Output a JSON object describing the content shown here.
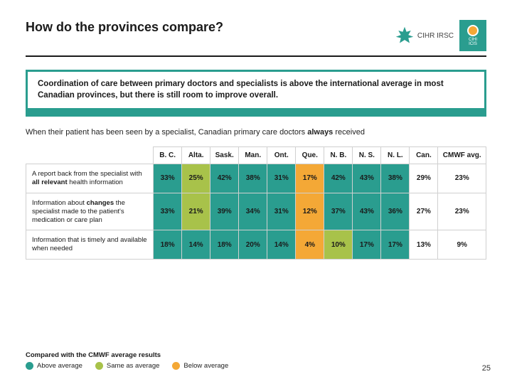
{
  "title": "How do the provinces compare?",
  "logos": {
    "cihr_line1": "CIHR",
    "cihr_line2": "IRSC",
    "cihi_line1": "CIHI",
    "cihi_line2": "ICIS"
  },
  "callout": "Coordination of care between primary doctors and specialists is above the international average in most Canadian provinces, but there is still room to improve overall.",
  "intro_pre": "When their patient has been seen by a specialist, Canadian primary care doctors ",
  "intro_bold": "always",
  "intro_post": " received",
  "colors": {
    "above": "#2a9d8f",
    "same": "#a8c24a",
    "below": "#f4a836",
    "header_bg": "#ffffff",
    "grid": "#d0d0d0"
  },
  "table": {
    "columns": [
      "B. C.",
      "Alta.",
      "Sask.",
      "Man.",
      "Ont.",
      "Que.",
      "N. B.",
      "N. S.",
      "N. L.",
      "Can.",
      "CMWF avg."
    ],
    "rows": [
      {
        "label_html": "A report back from the specialist with <b>all relevant</b> health information",
        "cells": [
          {
            "v": "33%",
            "c": "above"
          },
          {
            "v": "25%",
            "c": "same"
          },
          {
            "v": "42%",
            "c": "above"
          },
          {
            "v": "38%",
            "c": "above"
          },
          {
            "v": "31%",
            "c": "above"
          },
          {
            "v": "17%",
            "c": "below"
          },
          {
            "v": "42%",
            "c": "above"
          },
          {
            "v": "43%",
            "c": "above"
          },
          {
            "v": "38%",
            "c": "above"
          }
        ],
        "can": "29%",
        "avg": "23%"
      },
      {
        "label_html": "Information about <b>changes</b> the specialist made to the patient's medication or care plan",
        "cells": [
          {
            "v": "33%",
            "c": "above"
          },
          {
            "v": "21%",
            "c": "same"
          },
          {
            "v": "39%",
            "c": "above"
          },
          {
            "v": "34%",
            "c": "above"
          },
          {
            "v": "31%",
            "c": "above"
          },
          {
            "v": "12%",
            "c": "below"
          },
          {
            "v": "37%",
            "c": "above"
          },
          {
            "v": "43%",
            "c": "above"
          },
          {
            "v": "36%",
            "c": "above"
          }
        ],
        "can": "27%",
        "avg": "23%"
      },
      {
        "label_html": "Information that is timely and available when needed",
        "cells": [
          {
            "v": "18%",
            "c": "above"
          },
          {
            "v": "14%",
            "c": "above"
          },
          {
            "v": "18%",
            "c": "above"
          },
          {
            "v": "20%",
            "c": "above"
          },
          {
            "v": "14%",
            "c": "above"
          },
          {
            "v": "4%",
            "c": "below"
          },
          {
            "v": "10%",
            "c": "same"
          },
          {
            "v": "17%",
            "c": "above"
          },
          {
            "v": "17%",
            "c": "above"
          }
        ],
        "can": "13%",
        "avg": "9%"
      }
    ]
  },
  "legend": {
    "title": "Compared with the CMWF average results",
    "items": [
      {
        "label": "Above average",
        "c": "above"
      },
      {
        "label": "Same as average",
        "c": "same"
      },
      {
        "label": "Below average",
        "c": "below"
      }
    ]
  },
  "page_number": "25"
}
